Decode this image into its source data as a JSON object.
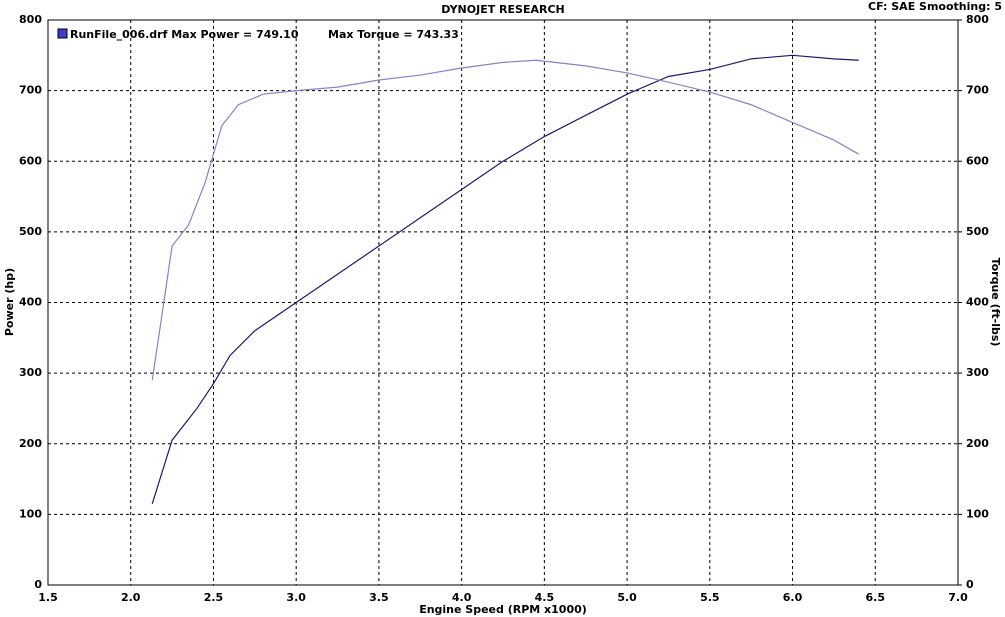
{
  "chart_data": {
    "type": "line",
    "title": "DYNOJET RESEARCH",
    "subtitle": "CF: SAE  Smoothing: 5",
    "legend_text": "RunFile_006.drf Max Power = 749.10",
    "annotation": "Max Torque = 743.33",
    "x_label": "Engine Speed (RPM x1000)",
    "y_label": "Power (hp)",
    "y2_label": "Torque (ft-lbs)",
    "xlim": [
      1.5,
      7.0
    ],
    "xticks": [
      1.5,
      {
        "value": 2,
        "label": "2.0"
      },
      2.5,
      {
        "value": 3,
        "label": "3.0"
      },
      3.5,
      {
        "value": 4,
        "label": "4.0"
      },
      4.5,
      {
        "value": 5,
        "label": "5.0"
      },
      5.5,
      {
        "value": 6,
        "label": "6.0"
      },
      6.5,
      {
        "value": 7,
        "label": "7.0"
      }
    ],
    "ylim": [
      0,
      800
    ],
    "yticks": [
      0,
      100,
      200,
      300,
      400,
      500,
      600,
      700,
      800
    ],
    "y2lim": [
      0,
      800
    ],
    "y2ticks": [
      0,
      100,
      200,
      300,
      400,
      500,
      600,
      700,
      800
    ],
    "grid": true,
    "series": [
      {
        "name": "Power",
        "color": "#1a1a6e",
        "x": [
          2.13,
          2.25,
          2.4,
          2.5,
          2.6,
          2.75,
          3.0,
          3.25,
          3.5,
          3.75,
          4.0,
          4.25,
          4.5,
          4.75,
          5.0,
          5.25,
          5.5,
          5.75,
          6.0,
          6.25,
          6.4
        ],
        "values": [
          115,
          205,
          250,
          285,
          325,
          360,
          400,
          440,
          480,
          520,
          560,
          600,
          635,
          665,
          695,
          720,
          730,
          745,
          750,
          745,
          743
        ]
      },
      {
        "name": "Torque",
        "axis": "y2",
        "color": "#7f86c8",
        "x": [
          2.13,
          2.2,
          2.25,
          2.35,
          2.45,
          2.55,
          2.65,
          2.8,
          3.0,
          3.25,
          3.5,
          3.75,
          4.0,
          4.25,
          4.45,
          4.75,
          5.0,
          5.25,
          5.5,
          5.75,
          6.0,
          6.25,
          6.4
        ],
        "values": [
          290,
          400,
          480,
          510,
          570,
          650,
          680,
          695,
          700,
          705,
          715,
          722,
          732,
          740,
          743,
          735,
          725,
          712,
          698,
          680,
          655,
          630,
          610
        ]
      }
    ]
  }
}
